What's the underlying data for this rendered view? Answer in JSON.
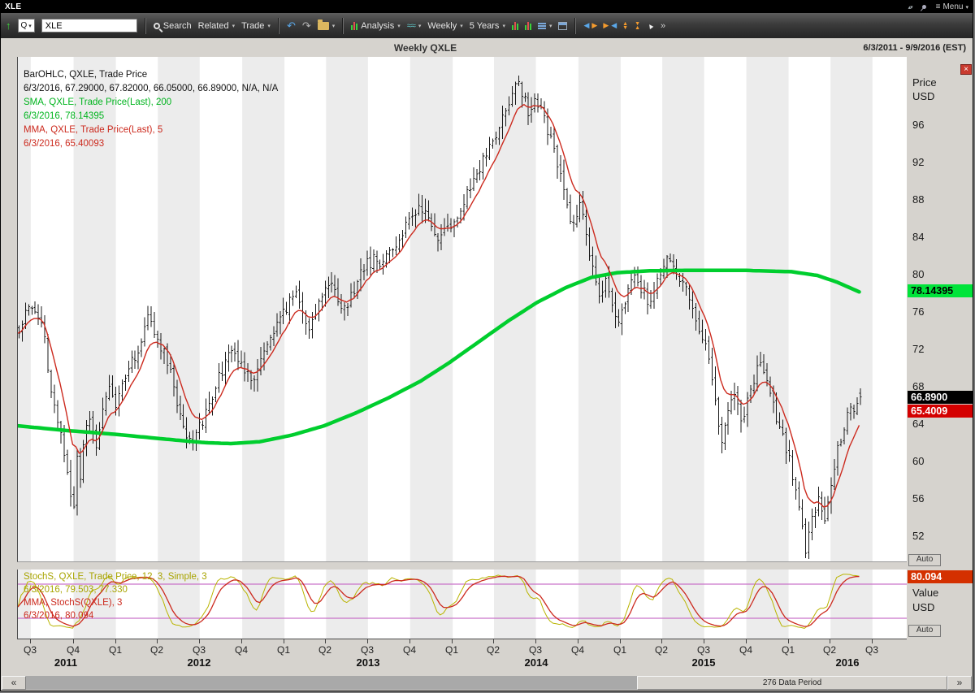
{
  "titlebar": {
    "title": "XLE",
    "menu_label": "Menu"
  },
  "toolbar": {
    "symbol_prefix": "Q",
    "symbol_input": "XLE",
    "search_label": "Search",
    "related_label": "Related",
    "trade_label": "Trade",
    "analysis_label": "Analysis",
    "period_label": "Weekly",
    "range_label": "5 Years"
  },
  "header": {
    "title": "Weekly QXLE",
    "date_range": "6/3/2011 - 9/9/2016 (EST)"
  },
  "main_legend": {
    "line1": "BarOHLC, QXLE, Trade Price",
    "line2": "6/3/2016, 67.29000, 67.82000, 66.05000, 66.89000, N/A, N/A",
    "line3": "SMA, QXLE, Trade Price(Last),  200",
    "line4": "6/3/2016, 78.14395",
    "line5": "MMA, QXLE, Trade Price(Last),  5",
    "line6": "6/3/2016, 65.40093"
  },
  "stoch_legend": {
    "line1": "StochS, QXLE, Trade Price,  12, 3, Simple, 3",
    "line2": "6/3/2016, 79.503, 77.330",
    "line3": "MMA, StochS(QXLE),  3",
    "line4": "6/3/2016, 80.094"
  },
  "right_axis": {
    "price_label": "Price",
    "usd_label": "USD",
    "sma_value": "78.14395",
    "last_value": "66.8900",
    "mma_value": "65.4009",
    "stoch_value": "80.094",
    "auto_label": "Auto",
    "value_label": "Value",
    "value_usd": "USD"
  },
  "xaxis": {
    "quarters": [
      {
        "label": "Q3",
        "week": 4
      },
      {
        "label": "Q4",
        "week": 17.3
      },
      {
        "label": "Q1",
        "week": 30.4
      },
      {
        "label": "Q2",
        "week": 43.4
      },
      {
        "label": "Q3",
        "week": 56.4
      },
      {
        "label": "Q4",
        "week": 69.6
      },
      {
        "label": "Q1",
        "week": 82.7
      },
      {
        "label": "Q2",
        "week": 95.6
      },
      {
        "label": "Q3",
        "week": 108.6
      },
      {
        "label": "Q4",
        "week": 121.7
      },
      {
        "label": "Q1",
        "week": 134.9
      },
      {
        "label": "Q2",
        "week": 147.7
      },
      {
        "label": "Q3",
        "week": 160.7
      },
      {
        "label": "Q4",
        "week": 173.9
      },
      {
        "label": "Q1",
        "week": 187
      },
      {
        "label": "Q2",
        "week": 199.9
      },
      {
        "label": "Q3",
        "week": 212.9
      },
      {
        "label": "Q4",
        "week": 226
      },
      {
        "label": "Q1",
        "week": 239.1
      },
      {
        "label": "Q2",
        "week": 252.1
      },
      {
        "label": "Q3",
        "week": 265.1
      }
    ],
    "years": [
      {
        "label": "2011",
        "week": 15.2
      },
      {
        "label": "2012",
        "week": 56.5
      },
      {
        "label": "2013",
        "week": 108.8
      },
      {
        "label": "2014",
        "week": 161
      },
      {
        "label": "2015",
        "week": 213
      },
      {
        "label": "2016",
        "week": 257.5
      }
    ]
  },
  "scrollbar": {
    "label": "276 Data Period"
  },
  "chart_data": {
    "type": "ohlc-bar",
    "title": "Weekly QXLE",
    "symbol": "QXLE",
    "period": "Weekly",
    "date_range": [
      "6/3/2011",
      "9/9/2016"
    ],
    "data_weeks": 262,
    "total_weeks": 276,
    "ylim": [
      49.2,
      103.3
    ],
    "y_ticks": [
      96,
      92,
      88,
      84,
      80,
      76,
      72,
      68,
      64,
      60,
      56,
      52
    ],
    "last_bar": {
      "date": "6/3/2016",
      "open": 67.29,
      "high": 67.82,
      "low": 66.05,
      "close": 66.89
    },
    "overlays": [
      {
        "name": "SMA 200",
        "last": 78.14395
      },
      {
        "name": "MMA 5",
        "last": 65.40093
      }
    ],
    "close_anchors": [
      [
        0,
        74
      ],
      [
        2,
        75.5
      ],
      [
        4,
        77
      ],
      [
        6,
        76
      ],
      [
        8,
        73
      ],
      [
        10,
        67
      ],
      [
        12,
        64
      ],
      [
        14,
        61
      ],
      [
        16,
        56.5
      ],
      [
        17,
        54.8
      ],
      [
        18,
        60
      ],
      [
        19,
        57.5
      ],
      [
        20,
        62
      ],
      [
        22,
        64.5
      ],
      [
        24,
        62
      ],
      [
        26,
        66
      ],
      [
        28,
        67.5
      ],
      [
        30,
        66
      ],
      [
        32,
        68.5
      ],
      [
        34,
        70.5
      ],
      [
        36,
        71.5
      ],
      [
        38,
        73
      ],
      [
        40,
        75
      ],
      [
        42,
        74
      ],
      [
        44,
        72.5
      ],
      [
        46,
        71
      ],
      [
        48,
        68
      ],
      [
        50,
        64.5
      ],
      [
        52,
        62.5
      ],
      [
        54,
        61.5
      ],
      [
        56,
        63.5
      ],
      [
        58,
        65.5
      ],
      [
        60,
        67
      ],
      [
        62,
        69
      ],
      [
        64,
        70.5
      ],
      [
        66,
        72.5
      ],
      [
        68,
        71
      ],
      [
        70,
        69.5
      ],
      [
        72,
        68.5
      ],
      [
        74,
        70
      ],
      [
        76,
        71.5
      ],
      [
        78,
        73
      ],
      [
        80,
        74.5
      ],
      [
        82,
        76
      ],
      [
        84,
        77
      ],
      [
        86,
        77.5
      ],
      [
        88,
        76
      ],
      [
        90,
        74.5
      ],
      [
        92,
        76
      ],
      [
        94,
        78
      ],
      [
        96,
        79.5
      ],
      [
        98,
        78.5
      ],
      [
        100,
        77
      ],
      [
        102,
        76.5
      ],
      [
        104,
        78.5
      ],
      [
        106,
        80
      ],
      [
        108,
        81
      ],
      [
        110,
        81.5
      ],
      [
        112,
        80.5
      ],
      [
        114,
        82
      ],
      [
        116,
        83
      ],
      [
        118,
        84
      ],
      [
        120,
        85
      ],
      [
        122,
        86
      ],
      [
        124,
        87
      ],
      [
        126,
        87.5
      ],
      [
        128,
        85.5
      ],
      [
        130,
        83.5
      ],
      [
        132,
        84.5
      ],
      [
        134,
        85.5
      ],
      [
        136,
        86.5
      ],
      [
        138,
        88
      ],
      [
        140,
        89.5
      ],
      [
        142,
        91
      ],
      [
        144,
        92
      ],
      [
        146,
        93.5
      ],
      [
        148,
        95
      ],
      [
        150,
        96.5
      ],
      [
        152,
        98
      ],
      [
        154,
        100
      ],
      [
        155,
        100.8
      ],
      [
        156,
        99.5
      ],
      [
        158,
        97.5
      ],
      [
        160,
        99
      ],
      [
        162,
        97.5
      ],
      [
        164,
        95.5
      ],
      [
        166,
        93.5
      ],
      [
        168,
        90.5
      ],
      [
        170,
        87
      ],
      [
        172,
        85
      ],
      [
        174,
        87.5
      ],
      [
        176,
        84
      ],
      [
        178,
        80.5
      ],
      [
        180,
        77
      ],
      [
        182,
        79.5
      ],
      [
        184,
        76.5
      ],
      [
        186,
        74.5
      ],
      [
        188,
        77.5
      ],
      [
        190,
        80
      ],
      [
        192,
        79.5
      ],
      [
        194,
        78
      ],
      [
        196,
        77
      ],
      [
        198,
        79
      ],
      [
        200,
        81.5
      ],
      [
        202,
        81
      ],
      [
        204,
        80
      ],
      [
        206,
        79
      ],
      [
        208,
        77
      ],
      [
        210,
        75.5
      ],
      [
        212,
        73.5
      ],
      [
        214,
        70.5
      ],
      [
        216,
        66.5
      ],
      [
        218,
        62
      ],
      [
        220,
        65
      ],
      [
        222,
        67
      ],
      [
        224,
        64.5
      ],
      [
        226,
        66.5
      ],
      [
        228,
        69
      ],
      [
        230,
        70.5
      ],
      [
        232,
        68.5
      ],
      [
        234,
        66
      ],
      [
        236,
        63.5
      ],
      [
        238,
        61.5
      ],
      [
        240,
        58.5
      ],
      [
        242,
        54.5
      ],
      [
        244,
        50.8
      ],
      [
        246,
        53.5
      ],
      [
        248,
        56.5
      ],
      [
        250,
        54
      ],
      [
        252,
        58
      ],
      [
        254,
        61.5
      ],
      [
        256,
        64
      ],
      [
        258,
        66
      ],
      [
        259,
        64.8
      ],
      [
        260,
        65.8
      ],
      [
        261,
        66.89
      ]
    ],
    "sma200_anchors": [
      [
        0,
        63.8
      ],
      [
        15,
        63.3
      ],
      [
        30,
        62.9
      ],
      [
        45,
        62.4
      ],
      [
        58,
        62
      ],
      [
        66,
        61.9
      ],
      [
        75,
        62.1
      ],
      [
        85,
        62.8
      ],
      [
        95,
        63.8
      ],
      [
        105,
        65.2
      ],
      [
        115,
        66.8
      ],
      [
        125,
        68.6
      ],
      [
        134,
        70.6
      ],
      [
        143,
        72.8
      ],
      [
        152,
        75
      ],
      [
        161,
        77
      ],
      [
        170,
        78.6
      ],
      [
        178,
        79.7
      ],
      [
        186,
        80.2
      ],
      [
        196,
        80.4
      ],
      [
        210,
        80.45
      ],
      [
        225,
        80.45
      ],
      [
        240,
        80.3
      ],
      [
        248,
        79.9
      ],
      [
        254,
        79.2
      ],
      [
        261,
        78.14
      ]
    ],
    "stoch": {
      "name": "StochS",
      "params": "12, 3, Simple, 3",
      "levels": [
        80,
        20
      ],
      "last_k": 79.503,
      "last_d": 77.33,
      "last_mma": 80.094
    },
    "colors": {
      "bars": "#1a1a1a",
      "sma": "#00ce2e",
      "mma": "#cc2a1e",
      "stoch_k": "#b9b400",
      "stoch_mma": "#cc2a1e",
      "levels": "#c973c9",
      "band": "#ececec"
    }
  }
}
